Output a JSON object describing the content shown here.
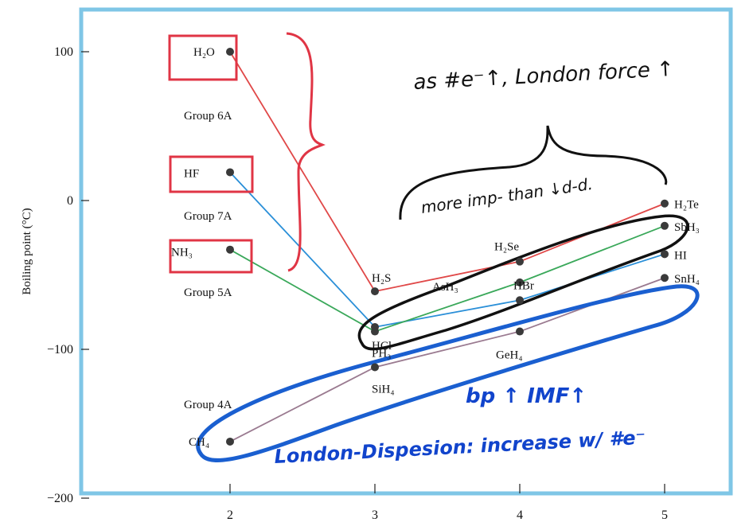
{
  "chart_data": {
    "type": "line",
    "ylabel": "Boiling point (°C)",
    "xlabel": "",
    "x": [
      2,
      3,
      4,
      5
    ],
    "x_tick_labels": [
      "2",
      "3",
      "4",
      "5"
    ],
    "y_tick_labels": [
      "100",
      "0",
      "−100",
      "−200"
    ],
    "y_ticks": [
      100,
      0,
      -100,
      -200
    ],
    "xlim": [
      1.1,
      5.4
    ],
    "ylim": [
      -205,
      125
    ],
    "grid": false,
    "series": [
      {
        "name": "Group 6A",
        "color": "#e04848",
        "values": [
          100,
          -61,
          -41,
          -2
        ],
        "point_labels": [
          "H₂O",
          "H₂S",
          "H₂Se",
          "H₂Te"
        ]
      },
      {
        "name": "Group 7A",
        "color": "#2a8fd8",
        "values": [
          19,
          -85,
          -67,
          -36
        ],
        "point_labels": [
          "HF",
          "HCl",
          "HBr",
          "HI"
        ]
      },
      {
        "name": "Group 5A",
        "color": "#3aa85a",
        "values": [
          -33,
          -88,
          -55,
          -17
        ],
        "point_labels": [
          "NH₃",
          "PH₃",
          "AsH₃",
          "SbH₃"
        ]
      },
      {
        "name": "Group 4A",
        "color": "#9a7a90",
        "values": [
          -162,
          -112,
          -88,
          -52
        ],
        "point_labels": [
          "CH₄",
          "SiH₄",
          "GeH₄",
          "SnH₄"
        ]
      }
    ],
    "annotations": [
      "as #e⁻↑, London force ↑",
      "more imp- than ↓d-d.",
      "bp ↑ IMF↑",
      "London-Dispesion: increase w/ #e⁻"
    ]
  }
}
